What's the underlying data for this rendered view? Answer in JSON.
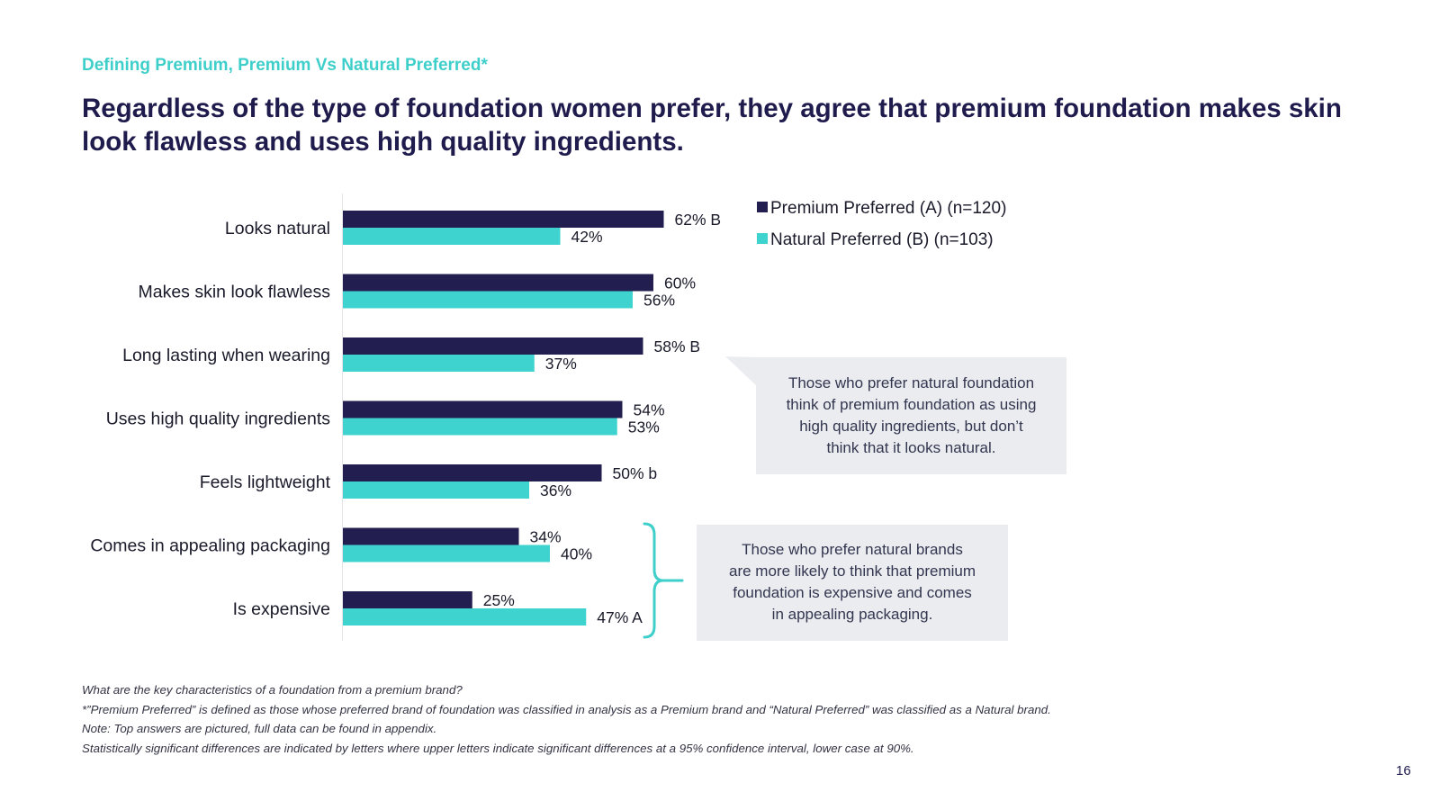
{
  "eyebrow": "Defining Premium, Premium Vs Natural Preferred*",
  "headline": "Regardless of the type of foundation women prefer, they agree that premium foundation makes skin look flawless and uses high quality ingredients.",
  "colors": {
    "premium": "#221f50",
    "natural": "#3fd3cf",
    "accent": "#3fcfcb",
    "callout_bg": "#eaecf0"
  },
  "chart_data": {
    "type": "bar",
    "orientation": "horizontal",
    "categories": [
      "Looks natural",
      "Makes skin look flawless",
      "Long lasting when wearing",
      "Uses high quality ingredients",
      "Feels lightweight",
      "Comes in appealing packaging",
      "Is expensive"
    ],
    "series": [
      {
        "name": "Premium Preferred (A) (n=120)",
        "values": [
          62,
          60,
          58,
          54,
          50,
          34,
          25
        ],
        "labels": [
          "62% B",
          "60%",
          "58%  B",
          "54%",
          "50% b",
          "34%",
          "25%"
        ]
      },
      {
        "name": "Natural Preferred (B) (n=103)",
        "values": [
          42,
          56,
          37,
          53,
          36,
          40,
          47
        ],
        "labels": [
          "42%",
          "56%",
          "37%",
          "53%",
          "36%",
          "40%",
          "47% A"
        ]
      }
    ],
    "xlim": [
      0,
      100
    ],
    "legend": "top-right",
    "grid": false
  },
  "callouts": {
    "natural_quality": [
      "Those who prefer natural foundation",
      "think of premium foundation as using",
      "high quality ingredients, but don’t",
      "think that it looks natural."
    ],
    "packaging_expensive": [
      "Those who prefer natural brands",
      "are more likely to think that premium",
      "foundation is expensive and comes",
      "in appealing packaging."
    ]
  },
  "footnotes": [
    "What are the key characteristics of a foundation from a premium brand?",
    "*”Premium Preferred” is defined as those whose preferred brand of foundation was classified in analysis as a Premium brand and “Natural Preferred” was classified as a Natural brand.",
    "Note: Top answers are pictured, full data can be found in appendix.",
    "Statistically significant differences are indicated by letters where upper letters indicate significant differences at a 95% confidence interval, lower case at 90%."
  ],
  "page_number": "16"
}
